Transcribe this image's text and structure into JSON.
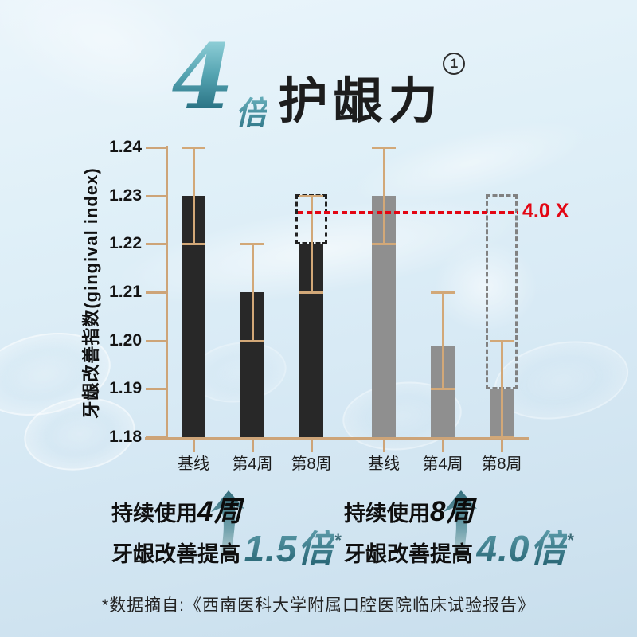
{
  "title": {
    "number": "4",
    "unit": "倍",
    "main": "护龈力",
    "superscript": "1"
  },
  "chart_data": {
    "type": "bar",
    "ylabel": "牙龈改善指数(gingival index)",
    "ylim": [
      1.18,
      1.24
    ],
    "yticks": [
      "1.24",
      "1.23",
      "1.22",
      "1.21",
      "1.20",
      "1.19",
      "1.18"
    ],
    "grid": false,
    "categories": [
      "基线",
      "第4周",
      "第8周",
      "基线",
      "第4周",
      "第8周"
    ],
    "bars": [
      {
        "label": "基线",
        "value": 1.23,
        "err_low": 1.22,
        "err_high": 1.24,
        "group": "dark"
      },
      {
        "label": "第4周",
        "value": 1.21,
        "err_low": 1.2,
        "err_high": 1.22,
        "group": "dark"
      },
      {
        "label": "第8周",
        "value": 1.22,
        "err_low": 1.21,
        "err_high": 1.23,
        "group": "dark",
        "dashed_to": 1.23
      },
      {
        "label": "基线",
        "value": 1.23,
        "err_low": 1.22,
        "err_high": 1.24,
        "group": "gray"
      },
      {
        "label": "第4周",
        "value": 1.199,
        "err_low": 1.19,
        "err_high": 1.21,
        "group": "gray"
      },
      {
        "label": "第8周",
        "value": 1.19,
        "err_low": 1.18,
        "err_high": 1.2,
        "group": "gray",
        "dashed_to": 1.23
      }
    ],
    "reference_line": {
      "value": 1.2265,
      "label": "4.0 X",
      "color": "#e30613"
    },
    "colors": {
      "dark_bar": "#282828",
      "gray_bar": "#8f8f8f",
      "axis": "#cda478",
      "error_bar": "#d2a878"
    }
  },
  "annotations": [
    {
      "line1_prefix": "持续使用",
      "duration": "4周",
      "line2_prefix": "牙龈改善提高",
      "multiplier": "1.5倍",
      "asterisk": "*"
    },
    {
      "line1_prefix": "持续使用",
      "duration": "8周",
      "line2_prefix": "牙龈改善提高",
      "multiplier": "4.0倍",
      "asterisk": "*"
    }
  ],
  "footnote": "*数据摘自:《西南医科大学附属口腔医院临床试验报告》"
}
